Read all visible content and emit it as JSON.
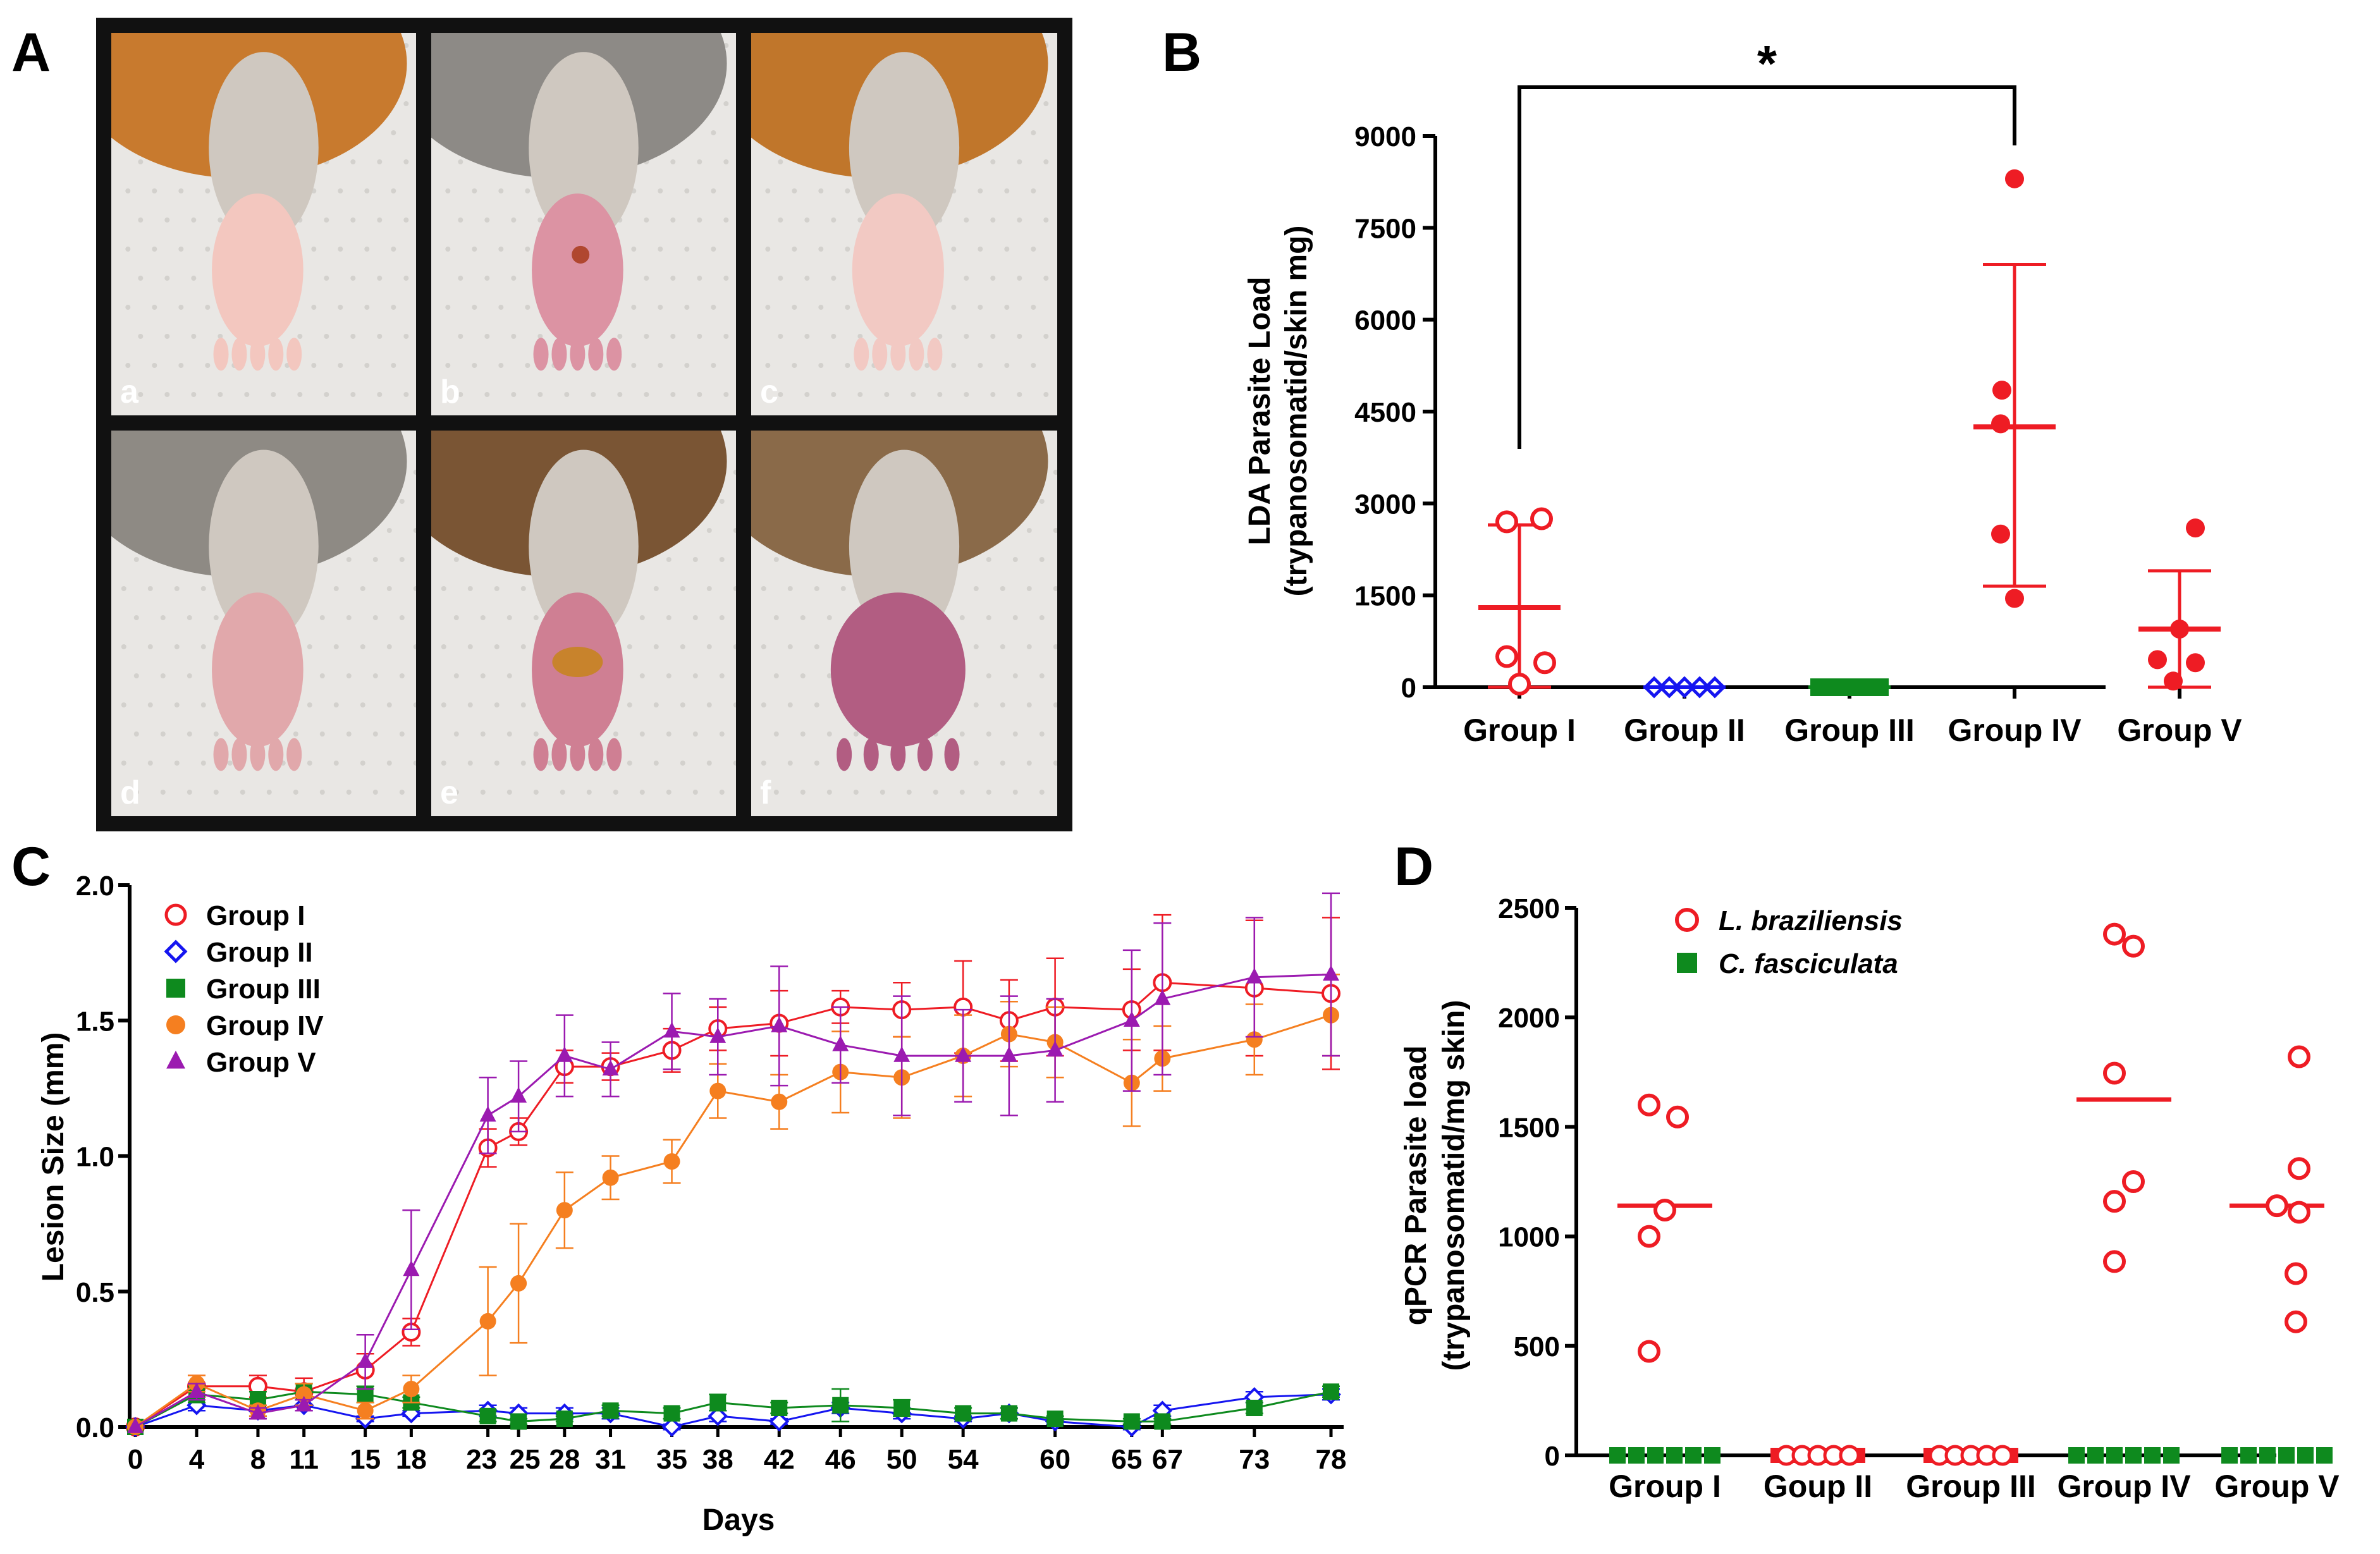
{
  "panel_labels": [
    "A",
    "B",
    "C",
    "D"
  ],
  "photos": {
    "labels": [
      "a",
      "b",
      "c",
      "d",
      "e",
      "f"
    ],
    "panels": [
      {
        "fur": "#c87a2e",
        "paw": "#f3c7bf",
        "lesion": "none"
      },
      {
        "fur": "#8d8a86",
        "paw": "#dc93a3",
        "lesion": "small"
      },
      {
        "fur": "#c0762b",
        "paw": "#f2c9c3",
        "lesion": "none"
      },
      {
        "fur": "#8e8a84",
        "paw": "#e1a8ab",
        "lesion": "none"
      },
      {
        "fur": "#7a5534",
        "paw": "#cf7f93",
        "lesion": "large"
      },
      {
        "fur": "#8a6a49",
        "paw": "#b25d82",
        "lesion": "swollen"
      }
    ]
  },
  "chart_data": [
    {
      "id": "B",
      "type": "scatter",
      "ylabel": "LDA Parasite Load",
      "ylabel2": "(trypanosomatid/skin mg)",
      "ylim": [
        0,
        9000
      ],
      "yticks": [
        0,
        1500,
        3000,
        4500,
        6000,
        7500,
        9000
      ],
      "categories": [
        "Group I",
        "Group II",
        "Group III",
        "Group IV",
        "Group V"
      ],
      "significance": {
        "from": "Group I",
        "to": "Group IV",
        "label": "*"
      },
      "groups": [
        {
          "name": "Group I",
          "color": "#ee1c24",
          "marker": "circle-open",
          "values": [
            2750,
            2700,
            500,
            400,
            50
          ],
          "mean": 1300,
          "sd_low": 0,
          "sd_high": 2650
        },
        {
          "name": "Group II",
          "color": "#1515f0",
          "marker": "diamond-open",
          "values": [
            0,
            0,
            0,
            0,
            0
          ],
          "mean": 0,
          "sd_low": 0,
          "sd_high": 0
        },
        {
          "name": "Group III",
          "color": "#0e8a1e",
          "marker": "square",
          "values": [
            0,
            0,
            0,
            0,
            0
          ],
          "mean": 0,
          "sd_low": 0,
          "sd_high": 0
        },
        {
          "name": "Group IV",
          "color": "#ee1c24",
          "marker": "circle",
          "values": [
            8300,
            4850,
            4300,
            2500,
            1450
          ],
          "mean": 4250,
          "sd_low": 1650,
          "sd_high": 6900
        },
        {
          "name": "Group V",
          "color": "#ee1c24",
          "marker": "circle",
          "values": [
            2600,
            950,
            450,
            400,
            100
          ],
          "mean": 950,
          "sd_low": 0,
          "sd_high": 1900
        }
      ]
    },
    {
      "id": "C",
      "type": "line",
      "xlabel": "Days",
      "ylabel": "Lesion Size (mm)",
      "ylim": [
        0,
        2.0
      ],
      "yticks": [
        "0.0",
        "0.5",
        "1.0",
        "1.5",
        "2.0"
      ],
      "xticks": [
        0,
        4,
        8,
        11,
        15,
        18,
        23,
        25,
        28,
        31,
        35,
        38,
        42,
        46,
        50,
        54,
        60,
        65,
        67,
        73,
        78
      ],
      "xlim": [
        0,
        80
      ],
      "series": [
        {
          "name": "Group I",
          "color": "#ee1c24",
          "marker": "circle-open",
          "x": [
            0,
            4,
            8,
            11,
            15,
            18,
            23,
            25,
            28,
            31,
            35,
            38,
            42,
            46,
            50,
            54,
            57,
            60,
            65,
            67,
            73,
            78
          ],
          "y": [
            0,
            0.15,
            0.15,
            0.13,
            0.21,
            0.35,
            1.03,
            1.09,
            1.33,
            1.33,
            1.39,
            1.47,
            1.49,
            1.55,
            1.54,
            1.55,
            1.5,
            1.55,
            1.54,
            1.64,
            1.62,
            1.6
          ],
          "err": [
            0,
            0.04,
            0.04,
            0.05,
            0.06,
            0.05,
            0.07,
            0.05,
            0.06,
            0.05,
            0.08,
            0.08,
            0.12,
            0.06,
            0.1,
            0.17,
            0.15,
            0.18,
            0.15,
            0.25,
            0.25,
            0.28
          ]
        },
        {
          "name": "Group II",
          "color": "#1515f0",
          "marker": "diamond-open",
          "x": [
            0,
            4,
            8,
            11,
            15,
            18,
            23,
            25,
            28,
            31,
            35,
            38,
            42,
            46,
            50,
            54,
            57,
            60,
            65,
            67,
            73,
            78
          ],
          "y": [
            0,
            0.08,
            0.06,
            0.08,
            0.03,
            0.05,
            0.06,
            0.05,
            0.05,
            0.05,
            0.0,
            0.04,
            0.02,
            0.07,
            0.05,
            0.03,
            0.05,
            0.02,
            0.0,
            0.06,
            0.11,
            0.12
          ],
          "err": [
            0,
            0.02,
            0.02,
            0.02,
            0.01,
            0.01,
            0.02,
            0.02,
            0.02,
            0.02,
            0.01,
            0.02,
            0.01,
            0.02,
            0.02,
            0.01,
            0.02,
            0.01,
            0.01,
            0.02,
            0.02,
            0.02
          ]
        },
        {
          "name": "Group III",
          "color": "#0e8a1e",
          "marker": "square",
          "x": [
            0,
            4,
            8,
            11,
            15,
            18,
            23,
            25,
            28,
            31,
            35,
            38,
            42,
            46,
            50,
            54,
            57,
            60,
            65,
            67,
            73,
            78
          ],
          "y": [
            0,
            0.12,
            0.1,
            0.13,
            0.12,
            0.09,
            0.04,
            0.02,
            0.03,
            0.06,
            0.05,
            0.09,
            0.07,
            0.08,
            0.07,
            0.05,
            0.05,
            0.03,
            0.02,
            0.02,
            0.07,
            0.13
          ],
          "err": [
            0,
            0.03,
            0.03,
            0.03,
            0.03,
            0.02,
            0.02,
            0.01,
            0.01,
            0.02,
            0.02,
            0.03,
            0.02,
            0.06,
            0.03,
            0.02,
            0.02,
            0.01,
            0.01,
            0.01,
            0.02,
            0.02
          ]
        },
        {
          "name": "Group IV",
          "color": "#f57f20",
          "marker": "circle",
          "x": [
            0,
            4,
            8,
            11,
            15,
            18,
            23,
            25,
            28,
            31,
            35,
            38,
            42,
            46,
            50,
            54,
            57,
            60,
            65,
            67,
            73,
            78
          ],
          "y": [
            0,
            0.16,
            0.06,
            0.12,
            0.06,
            0.14,
            0.39,
            0.53,
            0.8,
            0.92,
            0.98,
            1.24,
            1.2,
            1.31,
            1.29,
            1.37,
            1.45,
            1.42,
            1.27,
            1.36,
            1.43,
            1.52
          ],
          "err": [
            0,
            0.03,
            0.02,
            0.04,
            0.03,
            0.05,
            0.2,
            0.22,
            0.14,
            0.08,
            0.08,
            0.1,
            0.1,
            0.15,
            0.15,
            0.15,
            0.12,
            0.13,
            0.16,
            0.12,
            0.13,
            0.15
          ]
        },
        {
          "name": "Group V",
          "color": "#9b1ab0",
          "marker": "triangle",
          "x": [
            0,
            4,
            8,
            11,
            15,
            18,
            23,
            25,
            28,
            31,
            35,
            38,
            42,
            46,
            50,
            54,
            57,
            60,
            65,
            67,
            73,
            78
          ],
          "y": [
            0,
            0.13,
            0.05,
            0.08,
            0.24,
            0.58,
            1.15,
            1.22,
            1.37,
            1.32,
            1.46,
            1.44,
            1.48,
            1.41,
            1.37,
            1.37,
            1.37,
            1.39,
            1.5,
            1.58,
            1.66,
            1.67
          ],
          "err": [
            0,
            0.03,
            0.02,
            0.02,
            0.1,
            0.22,
            0.14,
            0.13,
            0.15,
            0.1,
            0.14,
            0.14,
            0.22,
            0.14,
            0.22,
            0.17,
            0.22,
            0.19,
            0.26,
            0.28,
            0.22,
            0.3
          ]
        }
      ]
    },
    {
      "id": "D",
      "type": "scatter",
      "ylabel": "qPCR Parasite load",
      "ylabel2": "(trypanosomatid/mg skin)",
      "ylim": [
        0,
        2500
      ],
      "yticks": [
        0,
        500,
        1000,
        1500,
        2000,
        2500
      ],
      "categories": [
        "Group I",
        "Goup II",
        "Group III",
        "Group IV",
        "Group V"
      ],
      "legend": [
        {
          "name": "L. braziliensis",
          "color": "#ee1c24",
          "marker": "circle-open"
        },
        {
          "name": "C. fasciculata",
          "color": "#0e8a1e",
          "marker": "square"
        }
      ],
      "groups": [
        {
          "name": "Group I",
          "lb_values": [
            1600,
            1545,
            1120,
            1000,
            475
          ],
          "lb_median": 1140,
          "cf_values": [
            0,
            0,
            0,
            0,
            0,
            0
          ]
        },
        {
          "name": "Goup II",
          "lb_values": [
            0,
            0,
            0,
            0,
            0
          ],
          "lb_median": 0,
          "cf_values": [
            0,
            0,
            0,
            0,
            0
          ]
        },
        {
          "name": "Group III",
          "lb_values": [
            0,
            0,
            0,
            0,
            0
          ],
          "lb_median": 0,
          "cf_values": [
            0,
            0,
            0,
            0,
            0
          ]
        },
        {
          "name": "Group IV",
          "lb_values": [
            2380,
            2325,
            1745,
            1250,
            1160,
            885
          ],
          "lb_median": 1625,
          "cf_values": [
            0,
            0,
            0,
            0,
            0,
            0
          ]
        },
        {
          "name": "Group V",
          "lb_values": [
            1820,
            1310,
            1140,
            1110,
            830,
            610
          ],
          "lb_median": 1140,
          "cf_values": [
            0,
            0,
            0,
            0,
            0,
            0
          ]
        }
      ]
    }
  ]
}
